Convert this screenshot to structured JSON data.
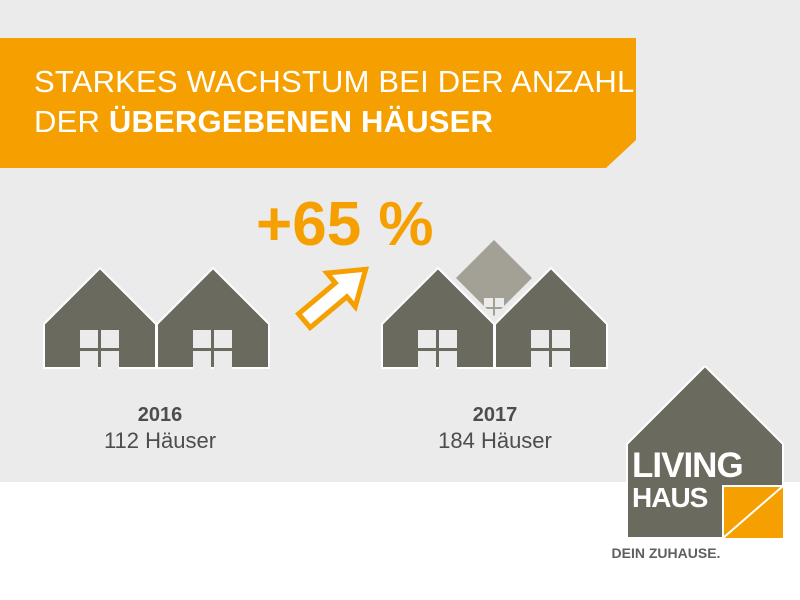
{
  "header": {
    "line1": "STARKES WACHSTUM BEI DER ANZAHL",
    "line2_prefix": "DER ",
    "line2_bold": "ÜBERGEBENEN HÄUSER"
  },
  "growth": {
    "label": "+65 %"
  },
  "years": [
    {
      "year": "2016",
      "count": "112 Häuser"
    },
    {
      "year": "2017",
      "count": "184 Häuser"
    }
  ],
  "logo": {
    "line1": "LIVING",
    "line2": "HAUS",
    "tagline": "DEIN ZUHAUSE."
  },
  "colors": {
    "accent": "#f5a000",
    "house": "#6b6a5f",
    "house_back": "#a3a095",
    "panel_bg": "#ebebeb",
    "text_dark": "#4d4d4d"
  }
}
